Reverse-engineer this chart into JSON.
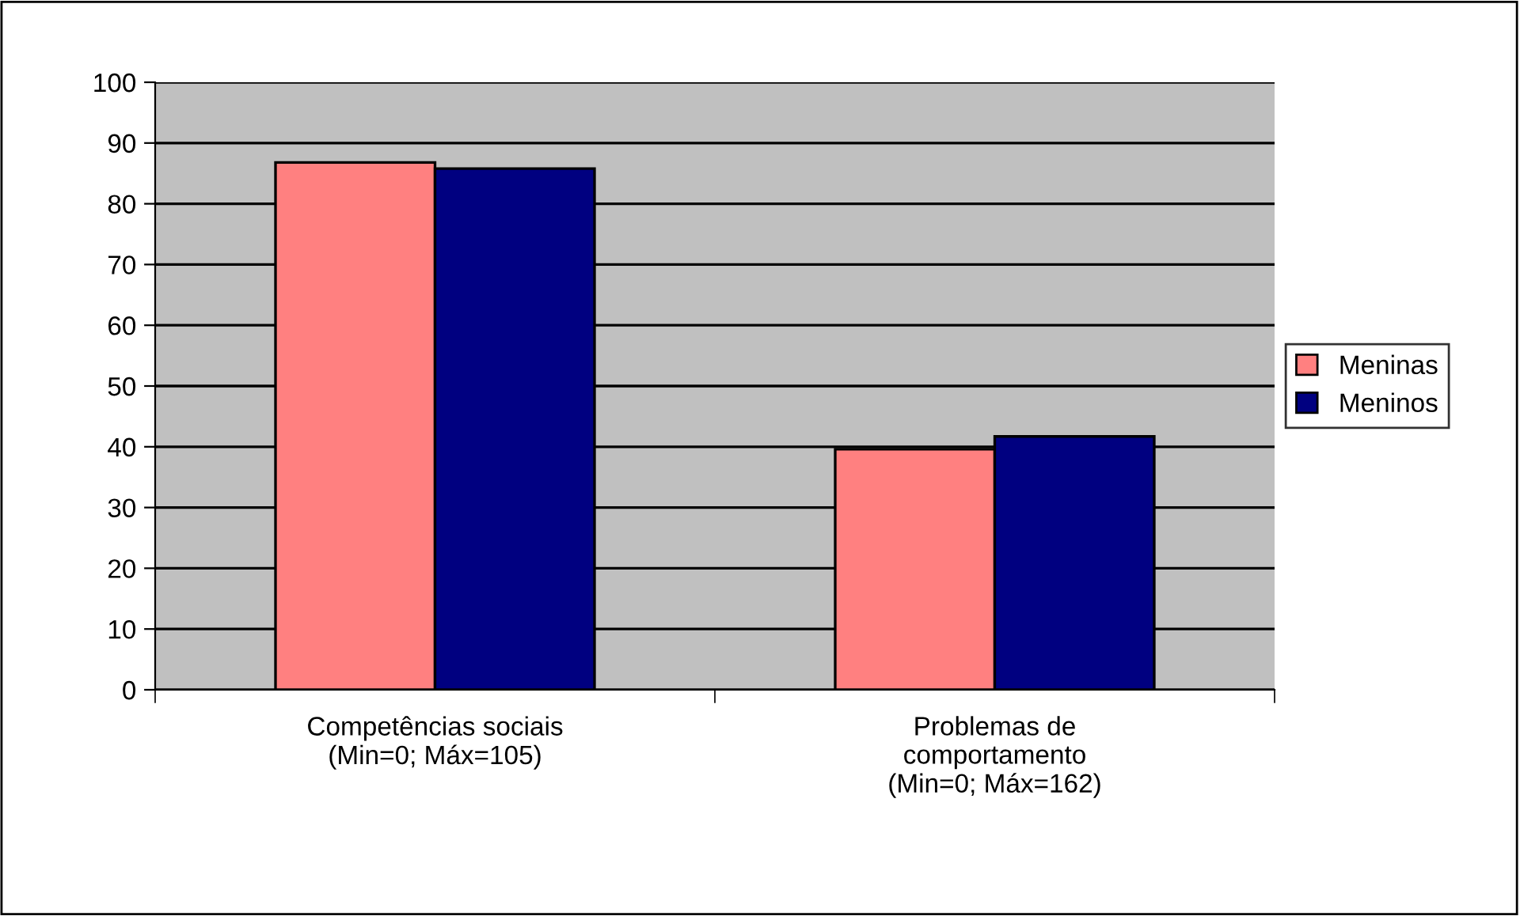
{
  "chart_data": {
    "type": "bar",
    "categories": [
      "Competências sociais\n(Min=0; Máx=105)",
      "Problemas de\ncomportamento\n(Min=0; Máx=162)"
    ],
    "series": [
      {
        "name": "Meninas",
        "color": "#ff8080",
        "values": [
          86.8,
          39.6
        ]
      },
      {
        "name": "Meninos",
        "color": "#000080",
        "values": [
          85.8,
          41.7
        ]
      }
    ],
    "ylim": [
      0,
      100
    ],
    "yticks": [
      0,
      10,
      20,
      30,
      40,
      50,
      60,
      70,
      80,
      90,
      100
    ],
    "grid": "y",
    "legend": "right"
  }
}
